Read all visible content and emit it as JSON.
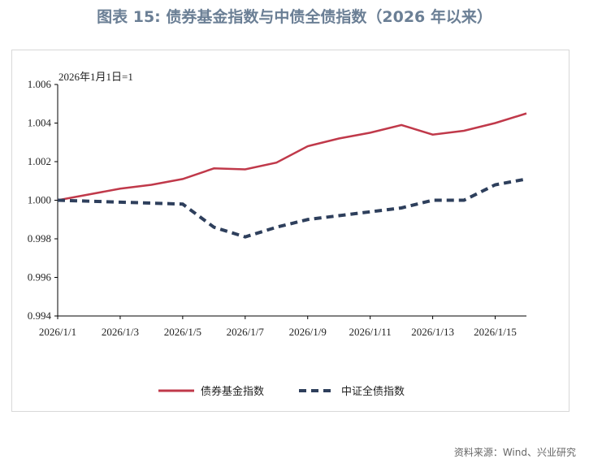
{
  "title": "图表 15: 债券基金指数与中债全债指数（2026 年以来）",
  "source": "资料来源：Wind、兴业研究",
  "chart_data": {
    "type": "line",
    "title": "图表 15: 债券基金指数与中债全债指数（2026 年以来）",
    "annotation": "2026年1月1日=1",
    "x": [
      "2026/1/1",
      "2026/1/2",
      "2026/1/3",
      "2026/1/4",
      "2026/1/5",
      "2026/1/6",
      "2026/1/7",
      "2026/1/8",
      "2026/1/9",
      "2026/1/10",
      "2026/1/11",
      "2026/1/12",
      "2026/1/13",
      "2026/1/14",
      "2026/1/15",
      "2026/1/16"
    ],
    "x_tick_labels": [
      "2026/1/1",
      "2026/1/3",
      "2026/1/5",
      "2026/1/7",
      "2026/1/9",
      "2026/1/11",
      "2026/1/13",
      "2026/1/15"
    ],
    "ylim": [
      0.994,
      1.006
    ],
    "y_ticks": [
      "0.994",
      "0.996",
      "0.998",
      "1.000",
      "1.002",
      "1.004",
      "1.006"
    ],
    "grid": false,
    "legend_position": "bottom",
    "series": [
      {
        "name": "债券基金指数",
        "color": "#c0394a",
        "style": "solid",
        "values": [
          1.0,
          1.0003,
          1.0006,
          1.0008,
          1.0011,
          1.00165,
          1.0016,
          1.00195,
          1.0028,
          1.0032,
          1.0035,
          1.0039,
          1.0034,
          1.0036,
          1.004,
          1.0045
        ]
      },
      {
        "name": "中证全债指数",
        "color": "#2e3f5c",
        "style": "dashed",
        "values": [
          1.0,
          0.99995,
          0.9999,
          0.99985,
          0.9998,
          0.9986,
          0.9981,
          0.9986,
          0.999,
          0.9992,
          0.9994,
          0.9996,
          1.0,
          1.0,
          1.0008,
          1.0011
        ]
      }
    ]
  }
}
